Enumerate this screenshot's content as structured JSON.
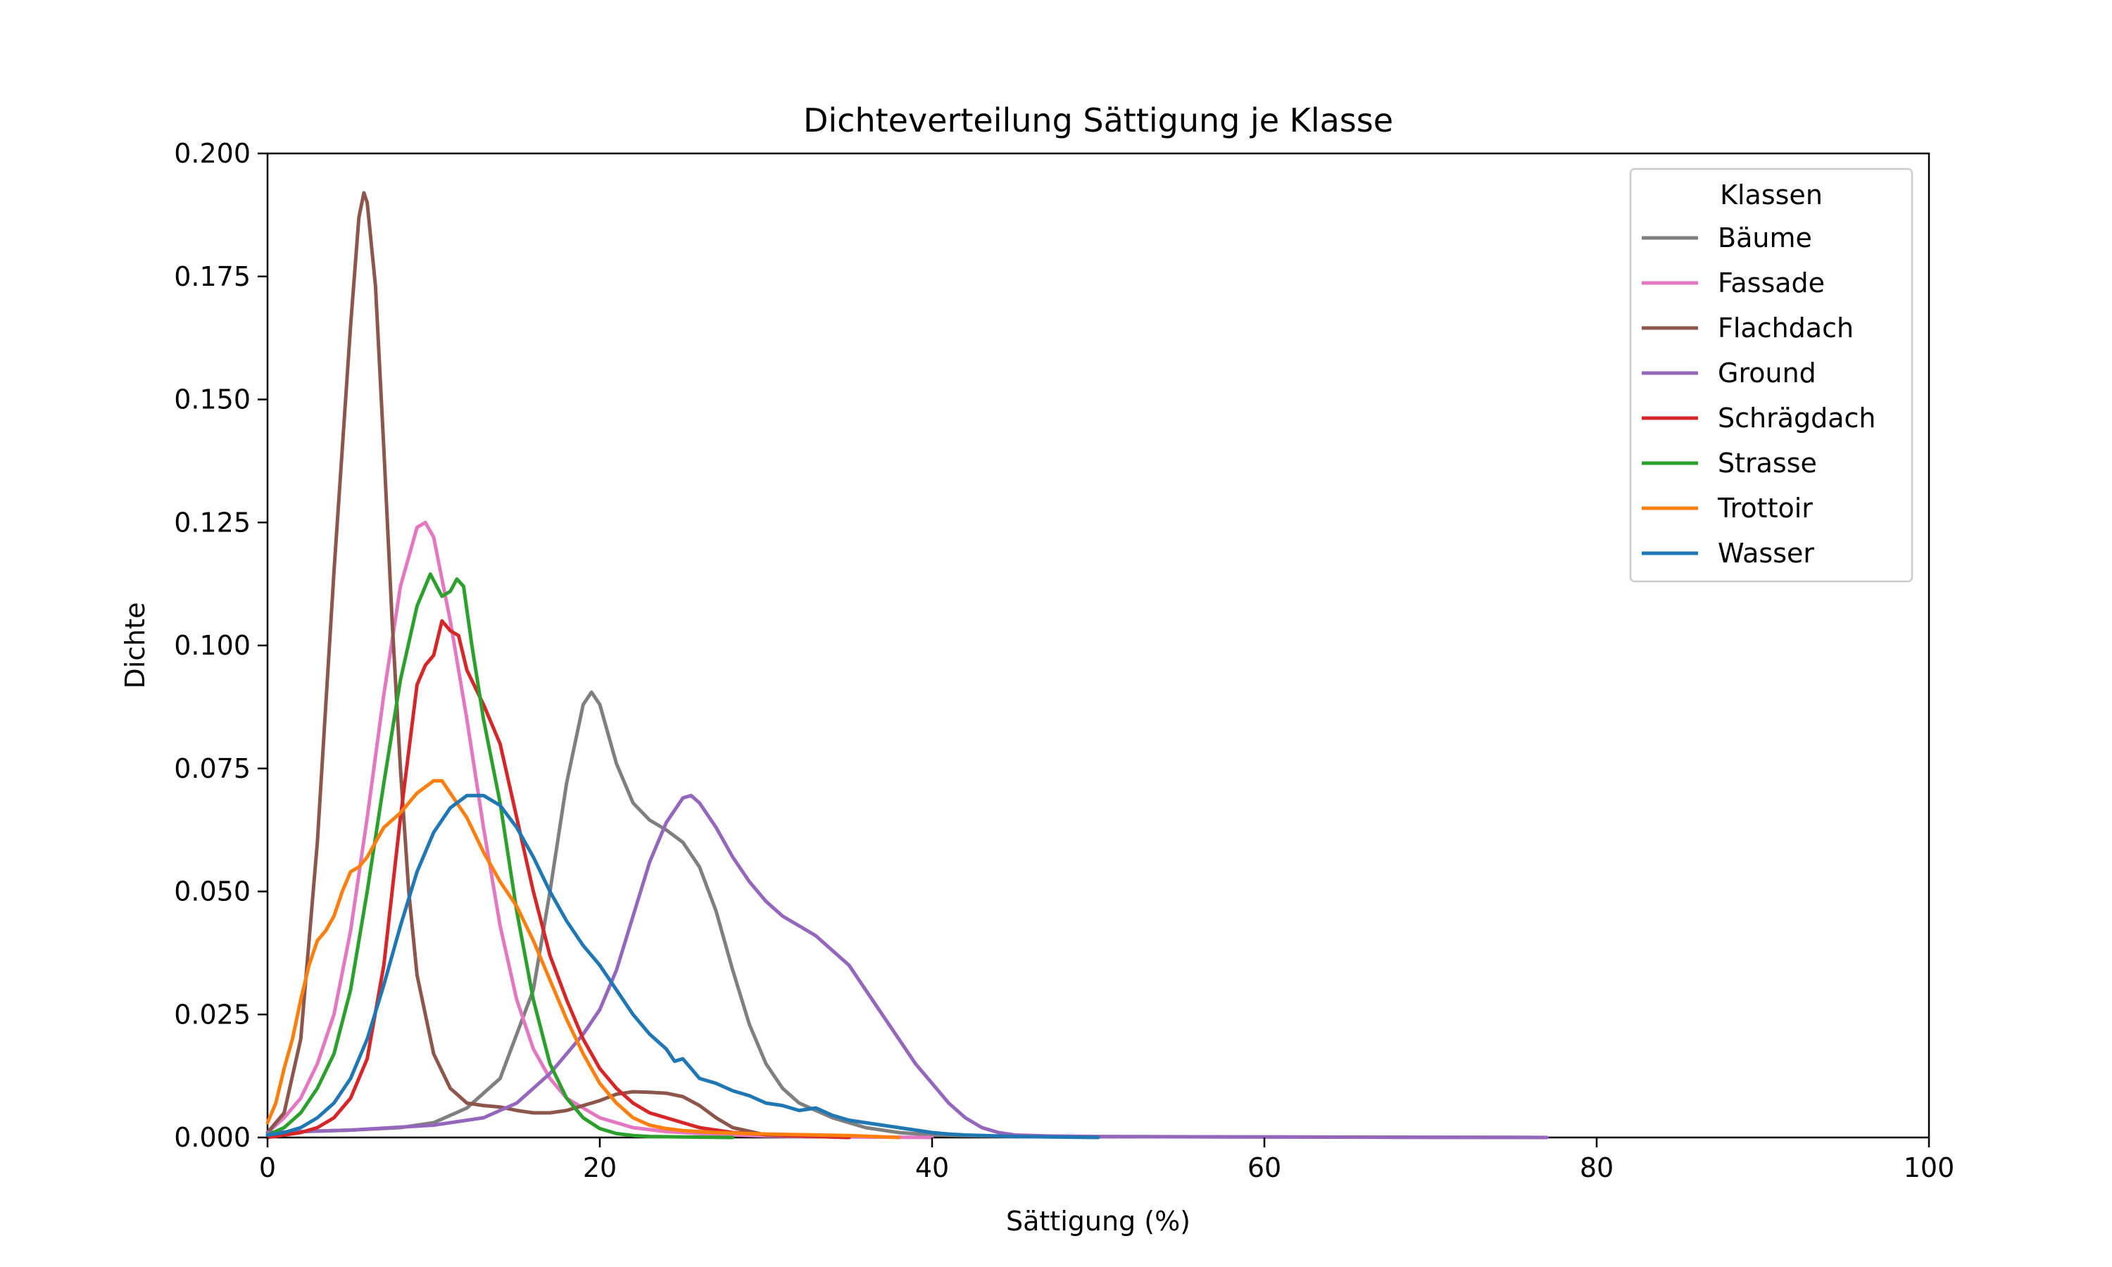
{
  "chart_data": {
    "type": "line",
    "title": "Dichteverteilung Sättigung je Klasse",
    "xlabel": "Sättigung (%)",
    "ylabel": "Dichte",
    "xlim": [
      0,
      100
    ],
    "ylim": [
      0,
      0.2
    ],
    "x_ticks": [
      0,
      20,
      40,
      60,
      80,
      100
    ],
    "x_tick_labels": [
      "0",
      "20",
      "40",
      "60",
      "80",
      "100"
    ],
    "y_ticks": [
      0,
      0.025,
      0.05,
      0.075,
      0.1,
      0.125,
      0.15,
      0.175,
      0.2
    ],
    "y_tick_labels": [
      "0.000",
      "0.025",
      "0.050",
      "0.075",
      "0.100",
      "0.125",
      "0.150",
      "0.175",
      "0.200"
    ],
    "grid": false,
    "legend": {
      "title": "Klassen",
      "placement": "top-right"
    },
    "series": [
      {
        "name": "Bäume",
        "color": "#7f7f7f",
        "x": [
          0,
          5,
          8,
          10,
          12,
          14,
          16,
          17,
          18,
          19,
          19.5,
          20,
          21,
          22,
          23,
          24,
          25,
          26,
          27,
          28,
          29,
          30,
          31,
          32,
          33,
          34,
          35,
          36,
          38,
          40,
          45,
          60,
          77
        ],
        "y": [
          0.001,
          0.0015,
          0.002,
          0.003,
          0.006,
          0.012,
          0.03,
          0.05,
          0.072,
          0.088,
          0.0905,
          0.088,
          0.076,
          0.068,
          0.0645,
          0.0625,
          0.06,
          0.055,
          0.046,
          0.034,
          0.023,
          0.015,
          0.01,
          0.007,
          0.0055,
          0.004,
          0.003,
          0.002,
          0.001,
          0.0005,
          0.0002,
          0.0001,
          0
        ]
      },
      {
        "name": "Fassade",
        "color": "#e377c2",
        "x": [
          0,
          1,
          2,
          3,
          4,
          5,
          6,
          7,
          8,
          9,
          9.5,
          10,
          11,
          12,
          13,
          14,
          15,
          16,
          17,
          18,
          19,
          20,
          22,
          24,
          26,
          28,
          30,
          35,
          40
        ],
        "y": [
          0.001,
          0.004,
          0.008,
          0.015,
          0.025,
          0.042,
          0.065,
          0.09,
          0.112,
          0.124,
          0.125,
          0.122,
          0.105,
          0.085,
          0.063,
          0.043,
          0.028,
          0.018,
          0.012,
          0.008,
          0.006,
          0.004,
          0.002,
          0.0012,
          0.0008,
          0.0005,
          0.0003,
          0.0001,
          0
        ]
      },
      {
        "name": "Flachdach",
        "color": "#8c564b",
        "x": [
          0,
          1,
          2,
          3,
          4,
          5,
          5.5,
          5.8,
          6,
          6.5,
          7,
          7.5,
          8,
          8.5,
          9,
          10,
          11,
          12,
          13,
          14,
          15,
          16,
          17,
          18,
          19,
          20,
          21,
          22,
          23,
          24,
          25,
          26,
          27,
          28,
          30,
          35
        ],
        "y": [
          0.001,
          0.005,
          0.02,
          0.06,
          0.115,
          0.165,
          0.187,
          0.192,
          0.19,
          0.173,
          0.14,
          0.105,
          0.075,
          0.05,
          0.033,
          0.017,
          0.01,
          0.007,
          0.0065,
          0.0062,
          0.0055,
          0.005,
          0.005,
          0.0055,
          0.0065,
          0.0075,
          0.0088,
          0.0093,
          0.0092,
          0.009,
          0.0083,
          0.0065,
          0.004,
          0.002,
          0.0005,
          0
        ]
      },
      {
        "name": "Ground",
        "color": "#9467bd",
        "x": [
          0,
          5,
          10,
          13,
          15,
          16,
          17,
          18,
          19,
          20,
          21,
          22,
          23,
          24,
          25,
          25.5,
          26,
          27,
          28,
          29,
          30,
          31,
          32,
          33,
          34,
          35,
          36,
          37,
          38,
          39,
          40,
          41,
          42,
          43,
          44,
          45,
          47,
          50,
          60,
          77
        ],
        "y": [
          0.001,
          0.0015,
          0.0025,
          0.004,
          0.007,
          0.01,
          0.013,
          0.017,
          0.021,
          0.026,
          0.034,
          0.045,
          0.056,
          0.064,
          0.069,
          0.0695,
          0.068,
          0.063,
          0.057,
          0.052,
          0.048,
          0.045,
          0.043,
          0.041,
          0.038,
          0.035,
          0.03,
          0.025,
          0.02,
          0.015,
          0.011,
          0.007,
          0.004,
          0.002,
          0.001,
          0.0005,
          0.0003,
          0.0002,
          0.0001,
          0
        ]
      },
      {
        "name": "Schrägdach",
        "color": "#d62728",
        "x": [
          0,
          1,
          2,
          3,
          4,
          5,
          6,
          7,
          8,
          9,
          9.5,
          10,
          10.5,
          11,
          11.5,
          12,
          13,
          14,
          15,
          16,
          17,
          18,
          19,
          20,
          21,
          22,
          23,
          24,
          25,
          26,
          27,
          28,
          30,
          32,
          35
        ],
        "y": [
          0,
          0.0005,
          0.001,
          0.002,
          0.004,
          0.008,
          0.016,
          0.035,
          0.065,
          0.092,
          0.096,
          0.098,
          0.105,
          0.103,
          0.102,
          0.095,
          0.088,
          0.08,
          0.065,
          0.05,
          0.037,
          0.028,
          0.02,
          0.014,
          0.01,
          0.007,
          0.005,
          0.004,
          0.003,
          0.002,
          0.0015,
          0.001,
          0.0006,
          0.0003,
          0
        ]
      },
      {
        "name": "Strasse",
        "color": "#2ca02c",
        "x": [
          0,
          1,
          2,
          3,
          4,
          5,
          6,
          7,
          8,
          9,
          9.8,
          10.5,
          11,
          11.4,
          11.8,
          12.3,
          13,
          14,
          15,
          16,
          17,
          18,
          19,
          20,
          21,
          22,
          23,
          25,
          28
        ],
        "y": [
          0.0005,
          0.002,
          0.005,
          0.01,
          0.017,
          0.03,
          0.05,
          0.072,
          0.093,
          0.108,
          0.1145,
          0.11,
          0.111,
          0.1135,
          0.112,
          0.1,
          0.085,
          0.068,
          0.046,
          0.028,
          0.015,
          0.008,
          0.004,
          0.0018,
          0.0008,
          0.0004,
          0.0002,
          0.0001,
          0
        ]
      },
      {
        "name": "Trottoir",
        "color": "#ff7f0e",
        "x": [
          0,
          0.5,
          1,
          1.5,
          2,
          2.5,
          3,
          3.5,
          4,
          4.5,
          5,
          5.5,
          6,
          7,
          8,
          9,
          10,
          10.5,
          11,
          12,
          13,
          14,
          15,
          16,
          17,
          18,
          19,
          20,
          21,
          22,
          23,
          24,
          25,
          27,
          30,
          35,
          38
        ],
        "y": [
          0.003,
          0.007,
          0.014,
          0.02,
          0.028,
          0.035,
          0.04,
          0.042,
          0.045,
          0.05,
          0.054,
          0.055,
          0.057,
          0.063,
          0.066,
          0.07,
          0.0725,
          0.0725,
          0.07,
          0.065,
          0.058,
          0.052,
          0.047,
          0.04,
          0.032,
          0.024,
          0.017,
          0.011,
          0.007,
          0.004,
          0.0025,
          0.0018,
          0.0014,
          0.001,
          0.0007,
          0.0004,
          0
        ]
      },
      {
        "name": "Wasser",
        "color": "#1f77b4",
        "x": [
          0,
          1,
          2,
          3,
          4,
          5,
          6,
          7,
          8,
          9,
          10,
          11,
          12,
          13,
          14,
          15,
          16,
          17,
          18,
          19,
          20,
          21,
          22,
          23,
          24,
          24.5,
          25,
          25.5,
          26,
          27,
          28,
          29,
          30,
          31,
          32,
          33,
          34,
          35,
          36,
          37,
          38,
          39,
          40,
          41,
          42,
          45,
          50
        ],
        "y": [
          0.0005,
          0.001,
          0.002,
          0.004,
          0.007,
          0.012,
          0.02,
          0.031,
          0.043,
          0.054,
          0.062,
          0.067,
          0.0695,
          0.0695,
          0.0675,
          0.063,
          0.057,
          0.05,
          0.044,
          0.039,
          0.035,
          0.03,
          0.025,
          0.021,
          0.018,
          0.0155,
          0.016,
          0.014,
          0.012,
          0.011,
          0.0095,
          0.0085,
          0.007,
          0.0065,
          0.0055,
          0.006,
          0.0045,
          0.0035,
          0.003,
          0.0025,
          0.002,
          0.0015,
          0.001,
          0.0007,
          0.0005,
          0.0002,
          0
        ]
      }
    ]
  }
}
